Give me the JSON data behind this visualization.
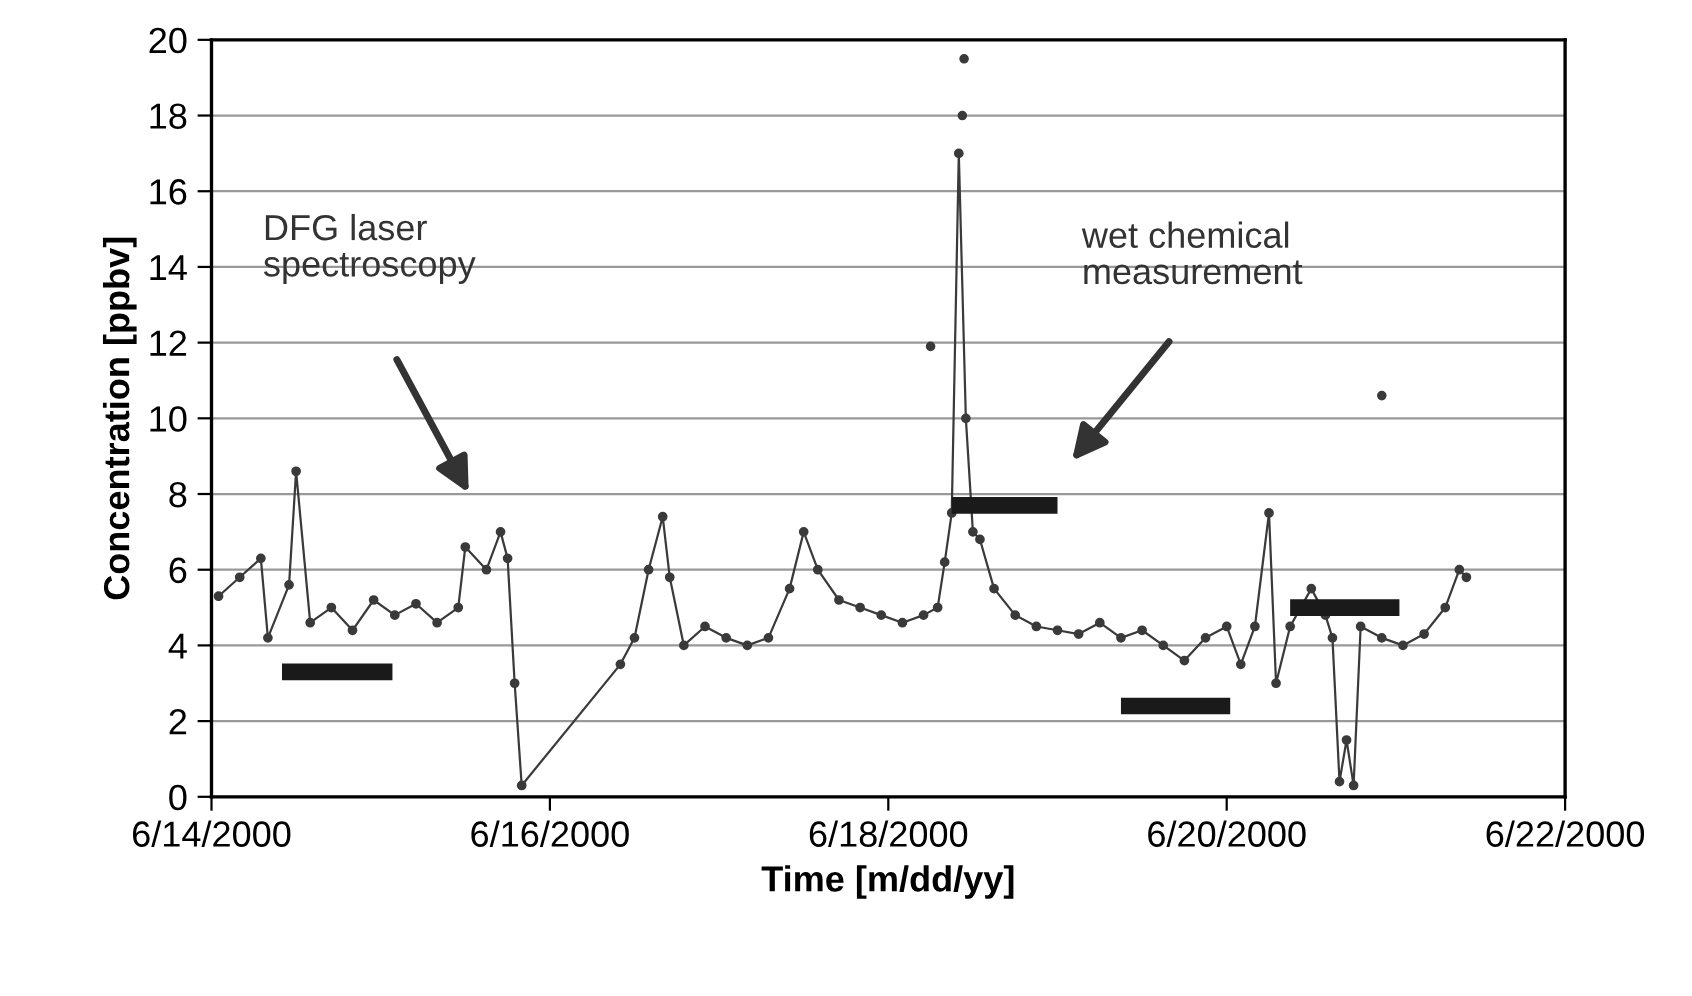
{
  "chart_data": {
    "type": "line",
    "xlabel": "Time [m/dd/yy]",
    "ylabel": "Concentration [ppbv]",
    "xlim": [
      "2000-06-14",
      "2000-06-22"
    ],
    "xticks": [
      {
        "value": "2000-06-14",
        "label": "6/14/2000"
      },
      {
        "value": "2000-06-16",
        "label": "6/16/2000"
      },
      {
        "value": "2000-06-18",
        "label": "6/18/2000"
      },
      {
        "value": "2000-06-20",
        "label": "6/20/2000"
      },
      {
        "value": "2000-06-22",
        "label": "6/22/2000"
      }
    ],
    "ylim": [
      0,
      20
    ],
    "yticks": [
      0,
      2,
      4,
      6,
      8,
      10,
      12,
      14,
      16,
      18,
      20
    ],
    "grid": "y",
    "legend": false,
    "series": [
      {
        "color": "#3a3a3a",
        "marker": "circle",
        "line_style": "solid",
        "x": [
          "2000-06-14T01:00",
          "2000-06-14T04:00",
          "2000-06-14T07:00",
          "2000-06-14T08:00",
          "2000-06-14T11:00",
          "2000-06-14T12:00",
          "2000-06-14T14:00",
          "2000-06-14T17:00",
          "2000-06-14T20:00",
          "2000-06-14T23:00",
          "2000-06-15T02:00",
          "2000-06-15T05:00",
          "2000-06-15T08:00",
          "2000-06-15T11:00",
          "2000-06-15T12:00",
          "2000-06-15T15:00",
          "2000-06-15T17:00",
          "2000-06-15T18:00",
          "2000-06-15T19:00",
          "2000-06-15T20:00",
          "2000-06-16T10:00",
          "2000-06-16T12:00",
          "2000-06-16T14:00",
          "2000-06-16T16:00",
          "2000-06-16T17:00",
          "2000-06-16T19:00",
          "2000-06-16T22:00",
          "2000-06-17T01:00",
          "2000-06-17T04:00",
          "2000-06-17T07:00",
          "2000-06-17T10:00",
          "2000-06-17T12:00",
          "2000-06-17T14:00",
          "2000-06-17T17:00",
          "2000-06-17T20:00",
          "2000-06-17T23:00",
          "2000-06-18T02:00",
          "2000-06-18T05:00",
          "2000-06-18T07:00",
          "2000-06-18T08:00",
          "2000-06-18T09:00",
          "2000-06-18T10:00",
          "2000-06-18T11:00",
          "2000-06-18T12:00",
          "2000-06-18T13:00",
          "2000-06-18T15:00",
          "2000-06-18T18:00",
          "2000-06-18T21:00",
          "2000-06-19T00:00",
          "2000-06-19T03:00",
          "2000-06-19T06:00",
          "2000-06-19T09:00",
          "2000-06-19T12:00",
          "2000-06-19T15:00",
          "2000-06-19T18:00",
          "2000-06-19T21:00",
          "2000-06-20T00:00",
          "2000-06-20T02:00",
          "2000-06-20T04:00",
          "2000-06-20T06:00",
          "2000-06-20T07:00",
          "2000-06-20T09:00",
          "2000-06-20T12:00",
          "2000-06-20T14:00",
          "2000-06-20T15:00",
          "2000-06-20T16:00",
          "2000-06-20T17:00",
          "2000-06-20T18:00",
          "2000-06-20T19:00",
          "2000-06-20T22:00",
          "2000-06-21T01:00",
          "2000-06-21T04:00",
          "2000-06-21T07:00",
          "2000-06-21T09:00",
          "2000-06-21T10:00"
        ],
        "values": [
          5.3,
          5.8,
          6.3,
          4.2,
          5.6,
          8.6,
          4.6,
          5.0,
          4.4,
          5.2,
          4.8,
          5.1,
          4.6,
          5.0,
          6.6,
          6.0,
          7.0,
          6.3,
          3.0,
          0.3,
          3.5,
          4.2,
          6.0,
          7.4,
          5.8,
          4.0,
          4.5,
          4.2,
          4.0,
          4.2,
          5.5,
          7.0,
          6.0,
          5.2,
          5.0,
          4.8,
          4.6,
          4.8,
          5.0,
          6.2,
          7.5,
          17.0,
          10.0,
          7.0,
          6.8,
          5.5,
          4.8,
          4.5,
          4.4,
          4.3,
          4.6,
          4.2,
          4.4,
          4.0,
          3.6,
          4.2,
          4.5,
          3.5,
          4.5,
          7.5,
          3.0,
          4.5,
          5.5,
          4.8,
          4.2,
          0.4,
          1.5,
          0.3,
          4.5,
          4.2,
          4.0,
          4.3,
          5.0,
          6.0,
          5.8
        ]
      },
      {
        "type": "scatter",
        "color": "#3a3a3a",
        "marker": "circle",
        "x": [
          "2000-06-18T06:00",
          "2000-06-18T10:30",
          "2000-06-18T10:45",
          "2000-06-20T22:00"
        ],
        "values": [
          11.9,
          18.0,
          19.5,
          10.6
        ]
      },
      {
        "color": "#1a1a1a",
        "marker": "none",
        "line_style": "solid",
        "x": [
          "2000-06-14T10:00",
          "2000-06-15T01:40",
          "2000-06-15T01:50",
          "2000-06-18T09:00",
          "2000-06-19T00:00",
          "2000-06-19T00:10",
          "2000-06-19T09:00",
          "2000-06-20T00:30",
          "2000-06-20T00:40",
          "2000-06-20T09:00",
          "2000-06-21T00:30"
        ],
        "values": [
          3.3,
          3.3,
          null,
          7.7,
          7.7,
          null,
          2.4,
          2.4,
          null,
          5.0,
          5.0
        ]
      }
    ],
    "annotations": [
      "DFG laser\nspectroscopy",
      "wet chemical\nmeasurement"
    ]
  }
}
